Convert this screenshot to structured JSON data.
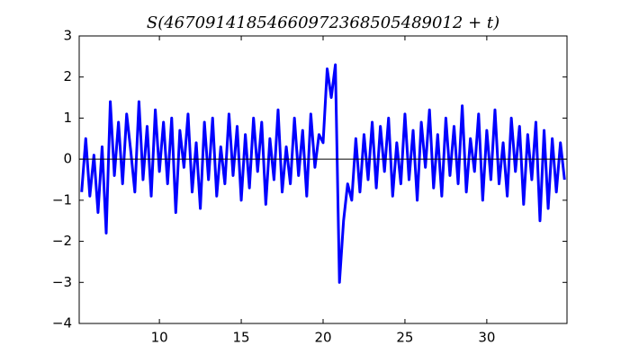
{
  "chart_data": {
    "type": "line",
    "title": "S(46709141854660972368505489012 + t)",
    "x": [
      5.25,
      5.5,
      5.75,
      6,
      6.25,
      6.5,
      6.75,
      7,
      7.25,
      7.5,
      7.75,
      8,
      8.25,
      8.5,
      8.75,
      9,
      9.25,
      9.5,
      9.75,
      10,
      10.25,
      10.5,
      10.75,
      11,
      11.25,
      11.5,
      11.75,
      12,
      12.25,
      12.5,
      12.75,
      13,
      13.25,
      13.5,
      13.75,
      14,
      14.25,
      14.5,
      14.75,
      15,
      15.25,
      15.5,
      15.75,
      16,
      16.25,
      16.5,
      16.75,
      17,
      17.25,
      17.5,
      17.75,
      18,
      18.25,
      18.5,
      18.75,
      19,
      19.25,
      19.5,
      19.75,
      20,
      20.25,
      20.5,
      20.75,
      21,
      21.25,
      21.5,
      21.75,
      22,
      22.25,
      22.5,
      22.75,
      23,
      23.25,
      23.5,
      23.75,
      24,
      24.25,
      24.5,
      24.75,
      25,
      25.25,
      25.5,
      25.75,
      26,
      26.25,
      26.5,
      26.75,
      27,
      27.25,
      27.5,
      27.75,
      28,
      28.25,
      28.5,
      28.75,
      29,
      29.25,
      29.5,
      29.75,
      30,
      30.25,
      30.5,
      30.75,
      31,
      31.25,
      31.5,
      31.75,
      32,
      32.25,
      32.5,
      32.75,
      33,
      33.25,
      33.5,
      33.75,
      34,
      34.25,
      34.5,
      34.75
    ],
    "series": [
      {
        "color": "#0000ff",
        "values": [
          -0.8,
          0.5,
          -0.9,
          0.1,
          -1.3,
          0.3,
          -1.8,
          1.4,
          -0.4,
          0.9,
          -0.6,
          1.1,
          0.2,
          -0.8,
          1.4,
          -0.5,
          0.8,
          -0.9,
          1.2,
          -0.3,
          0.9,
          -0.6,
          1.0,
          -1.3,
          0.7,
          -0.2,
          1.1,
          -0.8,
          0.4,
          -1.2,
          0.9,
          -0.5,
          1.0,
          -0.9,
          0.3,
          -0.6,
          1.1,
          -0.4,
          0.8,
          -1.0,
          0.6,
          -0.7,
          1.0,
          -0.3,
          0.9,
          -1.1,
          0.5,
          -0.5,
          1.2,
          -0.8,
          0.3,
          -0.6,
          1.0,
          -0.4,
          0.7,
          -0.9,
          1.1,
          -0.2,
          0.6,
          0.4,
          2.2,
          1.5,
          2.3,
          -3.0,
          -1.5,
          -0.6,
          -1.0,
          0.5,
          -0.8,
          0.6,
          -0.5,
          0.9,
          -0.7,
          0.8,
          -0.3,
          1.0,
          -0.9,
          0.4,
          -0.6,
          1.1,
          -0.5,
          0.7,
          -1.0,
          0.9,
          -0.2,
          1.2,
          -0.7,
          0.6,
          -0.9,
          1.0,
          -0.4,
          0.8,
          -0.6,
          1.3,
          -0.8,
          0.5,
          -0.3,
          1.1,
          -1.0,
          0.7,
          -0.5,
          1.2,
          -0.6,
          0.4,
          -0.9,
          1.0,
          -0.3,
          0.8,
          -1.1,
          0.6,
          -0.5,
          0.9,
          -1.5,
          0.7,
          -1.2,
          0.5,
          -0.8,
          0.4,
          -0.5
        ]
      }
    ],
    "hline": 0,
    "xlim": [
      5.1,
      34.9
    ],
    "xticks": [
      10,
      15,
      20,
      25,
      30
    ],
    "ylim": [
      -4,
      3
    ],
    "yticks": [
      {
        "value": -4,
        "label": "−4"
      },
      {
        "value": -3,
        "label": "−3"
      },
      {
        "value": -2,
        "label": "−2"
      },
      {
        "value": -1,
        "label": "−1"
      },
      0,
      1,
      2,
      3
    ]
  }
}
